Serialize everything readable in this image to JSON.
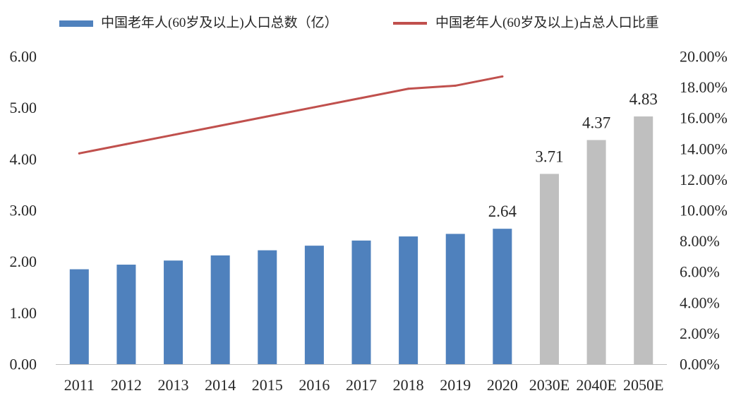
{
  "chart_data": {
    "type": "bar",
    "categories": [
      "2011",
      "2012",
      "2013",
      "2014",
      "2015",
      "2016",
      "2017",
      "2018",
      "2019",
      "2020",
      "2030E",
      "2040E",
      "2050E"
    ],
    "series": [
      {
        "name": "中国老年人(60岁及以上)人口总数（亿）",
        "type": "bar",
        "axis": "left",
        "values": [
          1.85,
          1.94,
          2.02,
          2.12,
          2.22,
          2.31,
          2.41,
          2.49,
          2.54,
          2.64,
          3.71,
          4.37,
          4.83
        ],
        "colors": [
          "#4F81BD",
          "#4F81BD",
          "#4F81BD",
          "#4F81BD",
          "#4F81BD",
          "#4F81BD",
          "#4F81BD",
          "#4F81BD",
          "#4F81BD",
          "#4F81BD",
          "#BFBFBF",
          "#BFBFBF",
          "#BFBFBF"
        ]
      },
      {
        "name": "中国老年人(60岁及以上)占总人口比重",
        "type": "line",
        "axis": "right",
        "values": [
          13.7,
          14.3,
          14.9,
          15.5,
          16.1,
          16.7,
          17.3,
          17.9,
          18.1,
          18.7,
          null,
          null,
          null
        ],
        "color": "#C0504D"
      }
    ],
    "data_labels": [
      {
        "category": "2020",
        "text": "2.64"
      },
      {
        "category": "2030E",
        "text": "3.71"
      },
      {
        "category": "2040E",
        "text": "4.37"
      },
      {
        "category": "2050E",
        "text": "4.83"
      }
    ],
    "y_left": {
      "range": [
        0,
        6
      ],
      "tick_labels": [
        "0.00",
        "1.00",
        "2.00",
        "3.00",
        "4.00",
        "5.00",
        "6.00"
      ]
    },
    "y_right": {
      "range": [
        0,
        20
      ],
      "tick_labels": [
        "0.00%",
        "2.00%",
        "4.00%",
        "6.00%",
        "8.00%",
        "10.00%",
        "12.00%",
        "14.00%",
        "16.00%",
        "18.00%",
        "20.00%"
      ]
    },
    "grid": false,
    "legend": "top",
    "axis_color": "#BFBFBF"
  }
}
